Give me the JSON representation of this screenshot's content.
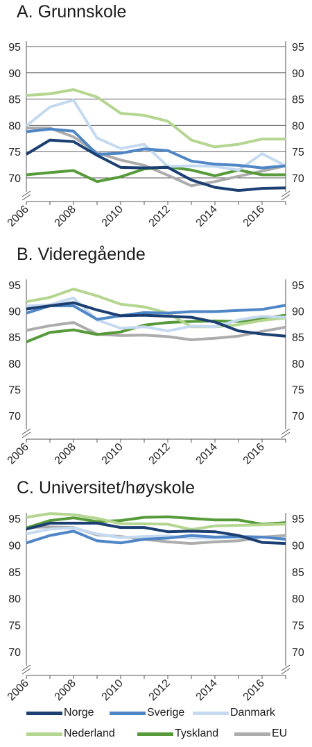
{
  "colors": {
    "Norge": "#1b3f73",
    "Sverige": "#4f86c6",
    "Danmark": "#c5daf0",
    "Nederland": "#b4d690",
    "Tyskland": "#569a3a",
    "EU": "#acacac",
    "axis": "#555555",
    "grid": "#5a5a5a"
  },
  "legend": [
    {
      "name": "Norge"
    },
    {
      "name": "Sverige"
    },
    {
      "name": "Danmark"
    },
    {
      "name": "Nederland"
    },
    {
      "name": "Tyskland"
    },
    {
      "name": "EU"
    }
  ],
  "chart_data": [
    {
      "type": "line",
      "title": "A. Grunnskole",
      "x": [
        2006,
        2007,
        2008,
        2009,
        2010,
        2011,
        2012,
        2013,
        2014,
        2015,
        2016,
        2017
      ],
      "xticks": [
        "2006",
        "2008",
        "2010",
        "2012",
        "2014",
        "2016"
      ],
      "yticks": [
        "70",
        "75",
        "80",
        "85",
        "90",
        "95"
      ],
      "ylim": [
        70,
        95
      ],
      "grid": true,
      "series": [
        {
          "name": "Norge",
          "values": [
            74.5,
            77.2,
            76.9,
            74.3,
            72.0,
            71.9,
            72.0,
            69.6,
            68.2,
            67.6,
            68.0,
            68.1
          ]
        },
        {
          "name": "Sverige",
          "values": [
            78.8,
            79.3,
            78.9,
            74.5,
            74.7,
            75.5,
            75.2,
            73.2,
            72.6,
            72.4,
            71.9,
            72.3
          ]
        },
        {
          "name": "Danmark",
          "values": [
            79.9,
            83.5,
            84.8,
            77.6,
            75.6,
            76.4,
            72.2,
            72.3,
            72.2,
            71.5,
            74.6,
            72.3
          ]
        },
        {
          "name": "Nederland",
          "values": [
            85.7,
            86.0,
            86.8,
            85.4,
            82.3,
            81.9,
            80.8,
            77.2,
            75.9,
            76.4,
            77.4,
            77.4
          ]
        },
        {
          "name": "Tyskland",
          "values": [
            70.6,
            71.0,
            71.4,
            69.3,
            70.2,
            71.7,
            72.1,
            71.5,
            70.4,
            71.5,
            70.6,
            70.6
          ]
        },
        {
          "name": "EU",
          "values": [
            79.5,
            79.5,
            77.8,
            74.8,
            73.4,
            72.4,
            70.5,
            68.5,
            69.3,
            70.3,
            71.3,
            72.3
          ]
        }
      ]
    },
    {
      "type": "line",
      "title": "B. Videregående",
      "x": [
        2006,
        2007,
        2008,
        2009,
        2010,
        2011,
        2012,
        2013,
        2014,
        2015,
        2016,
        2017
      ],
      "xticks": [
        "2006",
        "2008",
        "2010",
        "2012",
        "2014",
        "2016"
      ],
      "yticks": [
        "70",
        "75",
        "80",
        "85",
        "90",
        "95"
      ],
      "ylim": [
        65,
        98
      ],
      "grid": false,
      "series": [
        {
          "name": "Norge",
          "values": [
            90.4,
            91.0,
            91.6,
            90.2,
            89.1,
            89.2,
            89.0,
            88.8,
            87.9,
            86.2,
            85.6,
            85.2
          ]
        },
        {
          "name": "Sverige",
          "values": [
            89.6,
            91.0,
            91.0,
            88.4,
            89.1,
            89.7,
            89.6,
            89.9,
            89.9,
            90.1,
            90.3,
            91.1
          ]
        },
        {
          "name": "Danmark",
          "values": [
            91.0,
            91.2,
            92.5,
            88.3,
            86.7,
            87.0,
            86.2,
            87.1,
            87.0,
            88.3,
            89.0,
            88.8
          ]
        },
        {
          "name": "Nederland",
          "values": [
            91.8,
            92.6,
            94.2,
            92.9,
            91.3,
            90.8,
            89.6,
            87.0,
            87.0,
            87.4,
            88.2,
            88.7
          ]
        },
        {
          "name": "Tyskland",
          "values": [
            84.1,
            85.9,
            86.4,
            85.5,
            86.0,
            87.3,
            87.8,
            88.0,
            88.1,
            88.0,
            88.6,
            89.2
          ]
        },
        {
          "name": "EU",
          "values": [
            86.3,
            87.2,
            87.8,
            85.6,
            85.3,
            85.4,
            85.1,
            84.5,
            84.8,
            85.2,
            86.1,
            86.9
          ]
        }
      ]
    },
    {
      "type": "line",
      "title": "C. Universitet/høyskole",
      "x": [
        2006,
        2007,
        2008,
        2009,
        2010,
        2011,
        2012,
        2013,
        2014,
        2015,
        2016,
        2017
      ],
      "xticks": [
        "2006",
        "2008",
        "2010",
        "2012",
        "2014",
        "2016"
      ],
      "yticks": [
        "70",
        "75",
        "80",
        "85",
        "90",
        "95"
      ],
      "ylim": [
        65,
        98
      ],
      "grid": false,
      "series": [
        {
          "name": "Norge",
          "values": [
            93.0,
            94.1,
            94.1,
            94.1,
            93.3,
            93.3,
            92.5,
            92.6,
            92.5,
            91.8,
            90.5,
            90.3
          ]
        },
        {
          "name": "Sverige",
          "values": [
            90.4,
            91.8,
            92.6,
            90.8,
            90.4,
            91.1,
            91.3,
            91.8,
            91.5,
            91.6,
            91.5,
            91.1
          ]
        },
        {
          "name": "Danmark",
          "values": [
            92.1,
            93.0,
            93.2,
            92.1,
            91.4,
            91.6,
            91.7,
            91.3,
            91.3,
            91.4,
            91.5,
            91.2
          ]
        },
        {
          "name": "Nederland",
          "values": [
            95.2,
            95.9,
            95.7,
            95.0,
            94.0,
            94.0,
            93.9,
            92.9,
            93.6,
            93.7,
            93.8,
            93.9
          ]
        },
        {
          "name": "Tyskland",
          "values": [
            93.2,
            94.6,
            95.1,
            94.4,
            94.6,
            95.2,
            95.3,
            95.0,
            94.7,
            94.7,
            93.9,
            94.2
          ]
        },
        {
          "name": "EU",
          "values": [
            93.3,
            93.4,
            93.3,
            91.9,
            91.6,
            91.1,
            90.6,
            90.3,
            90.6,
            90.8,
            91.5,
            91.8
          ]
        }
      ]
    }
  ]
}
